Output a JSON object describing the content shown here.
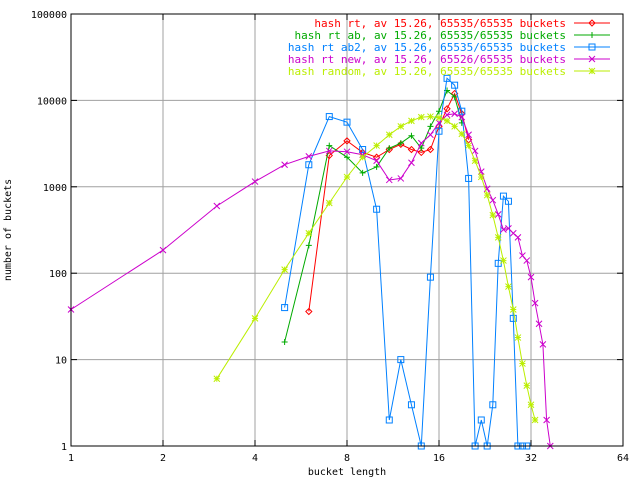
{
  "chart_data": {
    "type": "line",
    "xscale": "log2",
    "yscale": "log10",
    "xlabel": "bucket length",
    "ylabel": "number of buckets",
    "xlim": [
      1,
      64
    ],
    "ylim": [
      1,
      100000
    ],
    "x_ticks": [
      1,
      2,
      4,
      8,
      16,
      32,
      64
    ],
    "x_tick_labels": [
      "1",
      "2",
      "4",
      "8",
      "16",
      "32",
      "64"
    ],
    "y_ticks": [
      1,
      10,
      100,
      1000,
      10000,
      100000
    ],
    "y_tick_labels": [
      "1",
      "10",
      "100",
      "1000",
      "10000",
      "100000"
    ],
    "grid": true,
    "legend_position": "top-right",
    "series": [
      {
        "name": "hash rt, av 15.26, 65535/65535 buckets",
        "color": "#ff0000",
        "marker": "diamond",
        "x": [
          6,
          7,
          8,
          9,
          10,
          11,
          12,
          13,
          14,
          15,
          16,
          17,
          18,
          19,
          20
        ],
        "y": [
          36,
          2300,
          3400,
          2500,
          2200,
          2700,
          3100,
          2700,
          2500,
          2700,
          5000,
          8000,
          12000,
          7000,
          3500
        ]
      },
      {
        "name": "hash rt ab, av 15.26, 65535/65535 buckets",
        "color": "#00aa00",
        "marker": "plus",
        "x": [
          5,
          6,
          7,
          8,
          9,
          10,
          11,
          12,
          13,
          14,
          15,
          16,
          17,
          18,
          19
        ],
        "y": [
          16,
          210,
          3000,
          2200,
          1450,
          1700,
          2800,
          3200,
          3900,
          2800,
          5000,
          7500,
          13000,
          11000,
          5500
        ]
      },
      {
        "name": "hash rt ab2, av 15.26, 65535/65535 buckets",
        "color": "#0080ff",
        "marker": "square",
        "x": [
          5,
          6,
          7,
          8,
          9,
          10,
          11,
          12,
          13,
          14,
          15,
          16,
          17,
          18,
          19,
          20,
          21,
          22,
          23,
          24,
          25,
          26,
          27,
          28,
          29,
          30,
          31
        ],
        "y": [
          40,
          1800,
          6500,
          5600,
          2700,
          550,
          2,
          10,
          3,
          1,
          90,
          4400,
          18000,
          15000,
          7500,
          1250,
          1,
          2,
          1,
          3,
          130,
          780,
          680,
          30,
          1,
          1,
          1
        ]
      },
      {
        "name": "hash rt new, av 15.26, 65526/65535 buckets",
        "color": "#cc00cc",
        "marker": "cross",
        "x": [
          1,
          2,
          3,
          4,
          5,
          6,
          7,
          8,
          9,
          10,
          11,
          12,
          13,
          14,
          15,
          16,
          17,
          18,
          19,
          20,
          21,
          22,
          23,
          24,
          25,
          26,
          27,
          28,
          29,
          30,
          31,
          32,
          33,
          34,
          35,
          36,
          37
        ],
        "y": [
          38,
          185,
          600,
          1150,
          1800,
          2250,
          2600,
          2550,
          2350,
          2000,
          1200,
          1250,
          1900,
          3200,
          4000,
          5500,
          6800,
          7000,
          6400,
          4000,
          2600,
          1500,
          950,
          700,
          480,
          320,
          330,
          290,
          260,
          160,
          140,
          90,
          45,
          26,
          15,
          2,
          1
        ]
      },
      {
        "name": "hash random, av 15.26, 65535/65535 buckets",
        "color": "#bbee00",
        "marker": "star",
        "x": [
          3,
          4,
          5,
          6,
          7,
          8,
          9,
          10,
          11,
          12,
          13,
          14,
          15,
          16,
          17,
          18,
          19,
          20,
          21,
          22,
          23,
          24,
          25,
          26,
          27,
          28,
          29,
          30,
          31,
          32,
          33
        ],
        "y": [
          6,
          30,
          110,
          290,
          650,
          1300,
          2200,
          3000,
          4000,
          5000,
          5800,
          6400,
          6500,
          6300,
          5800,
          5000,
          4100,
          3000,
          2000,
          1300,
          800,
          470,
          260,
          140,
          70,
          38,
          18,
          9,
          5,
          3,
          2
        ]
      }
    ]
  }
}
